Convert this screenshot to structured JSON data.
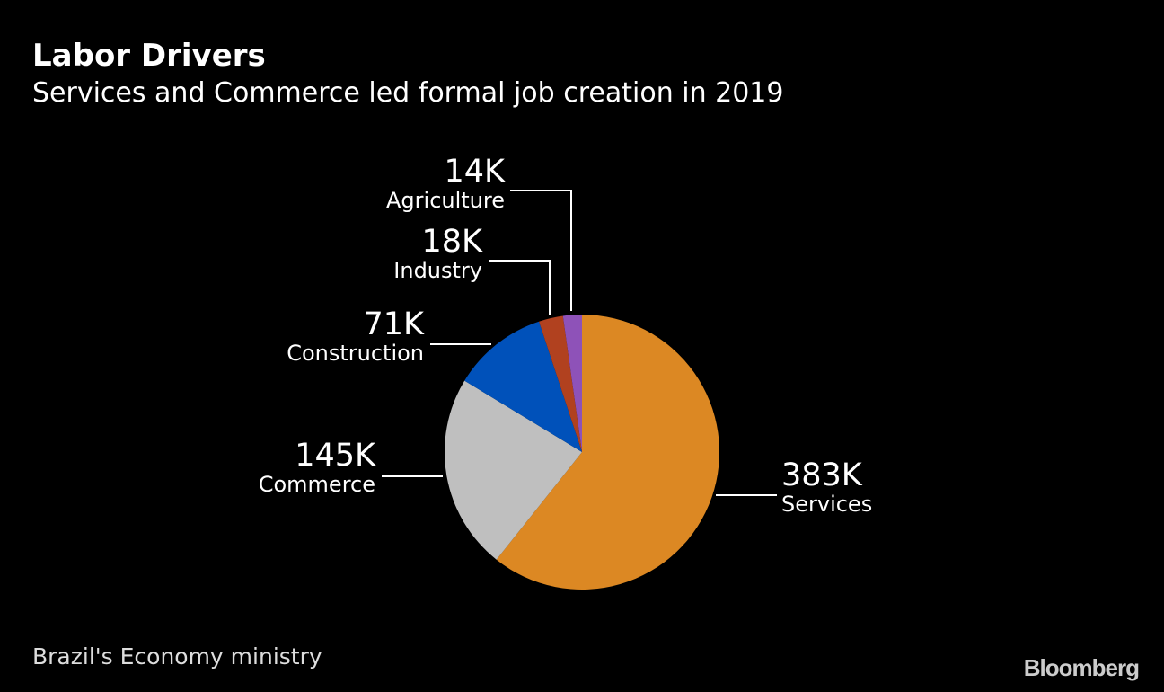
{
  "chart_data": {
    "type": "pie",
    "title": "Labor Drivers",
    "subtitle": "Services and Commerce led formal job creation in 2019",
    "source": "Brazil's Economy ministry",
    "logo": "Bloomberg",
    "slices": [
      {
        "name": "Services",
        "value": 383,
        "label": "383K",
        "color": "#dc8823"
      },
      {
        "name": "Commerce",
        "value": 145,
        "label": "145K",
        "color": "#bfbfbf"
      },
      {
        "name": "Construction",
        "value": 71,
        "label": "71K",
        "color": "#0051ba"
      },
      {
        "name": "Industry",
        "value": 18,
        "label": "18K",
        "color": "#b1411f"
      },
      {
        "name": "Agriculture",
        "value": 14,
        "label": "14K",
        "color": "#8e52b8"
      }
    ]
  }
}
